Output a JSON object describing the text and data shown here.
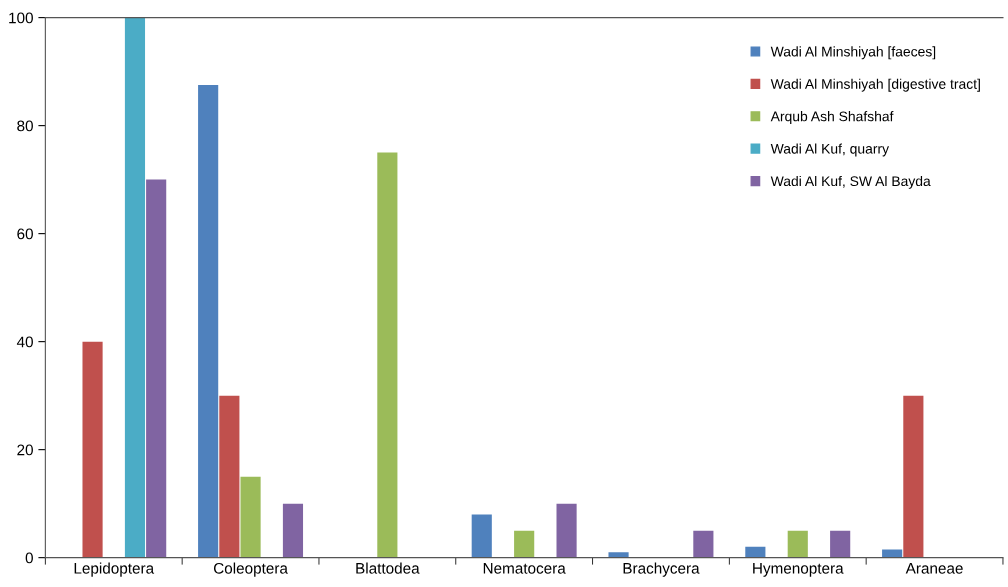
{
  "chart_data": {
    "type": "bar",
    "categories": [
      "Lepidoptera",
      "Coleoptera",
      "Blattodea",
      "Nematocera",
      "Brachycera",
      "Hymenoptera",
      "Araneae"
    ],
    "series": [
      {
        "name": "Wadi Al Minshiyah [faeces]",
        "color": "#4f81bd",
        "values": [
          null,
          87.5,
          null,
          8,
          1,
          2,
          1.5
        ]
      },
      {
        "name": "Wadi Al Minshiyah [digestive tract]",
        "color": "#c0504d",
        "values": [
          40,
          30,
          null,
          null,
          null,
          null,
          30
        ]
      },
      {
        "name": "Arqub Ash Shafshaf",
        "color": "#9bbb59",
        "values": [
          null,
          15,
          75,
          5,
          null,
          5,
          null
        ]
      },
      {
        "name": "Wadi Al Kuf, quarry",
        "color": "#4bacc6",
        "values": [
          100,
          null,
          null,
          null,
          null,
          null,
          null
        ]
      },
      {
        "name": "Wadi Al Kuf, SW Al Bayda",
        "color": "#8064a2",
        "values": [
          70,
          10,
          null,
          10,
          5,
          5,
          null
        ]
      }
    ],
    "ylim": [
      0,
      100
    ],
    "yticks": [
      0,
      20,
      40,
      60,
      80,
      100
    ],
    "grid": false,
    "legend": "top right"
  }
}
